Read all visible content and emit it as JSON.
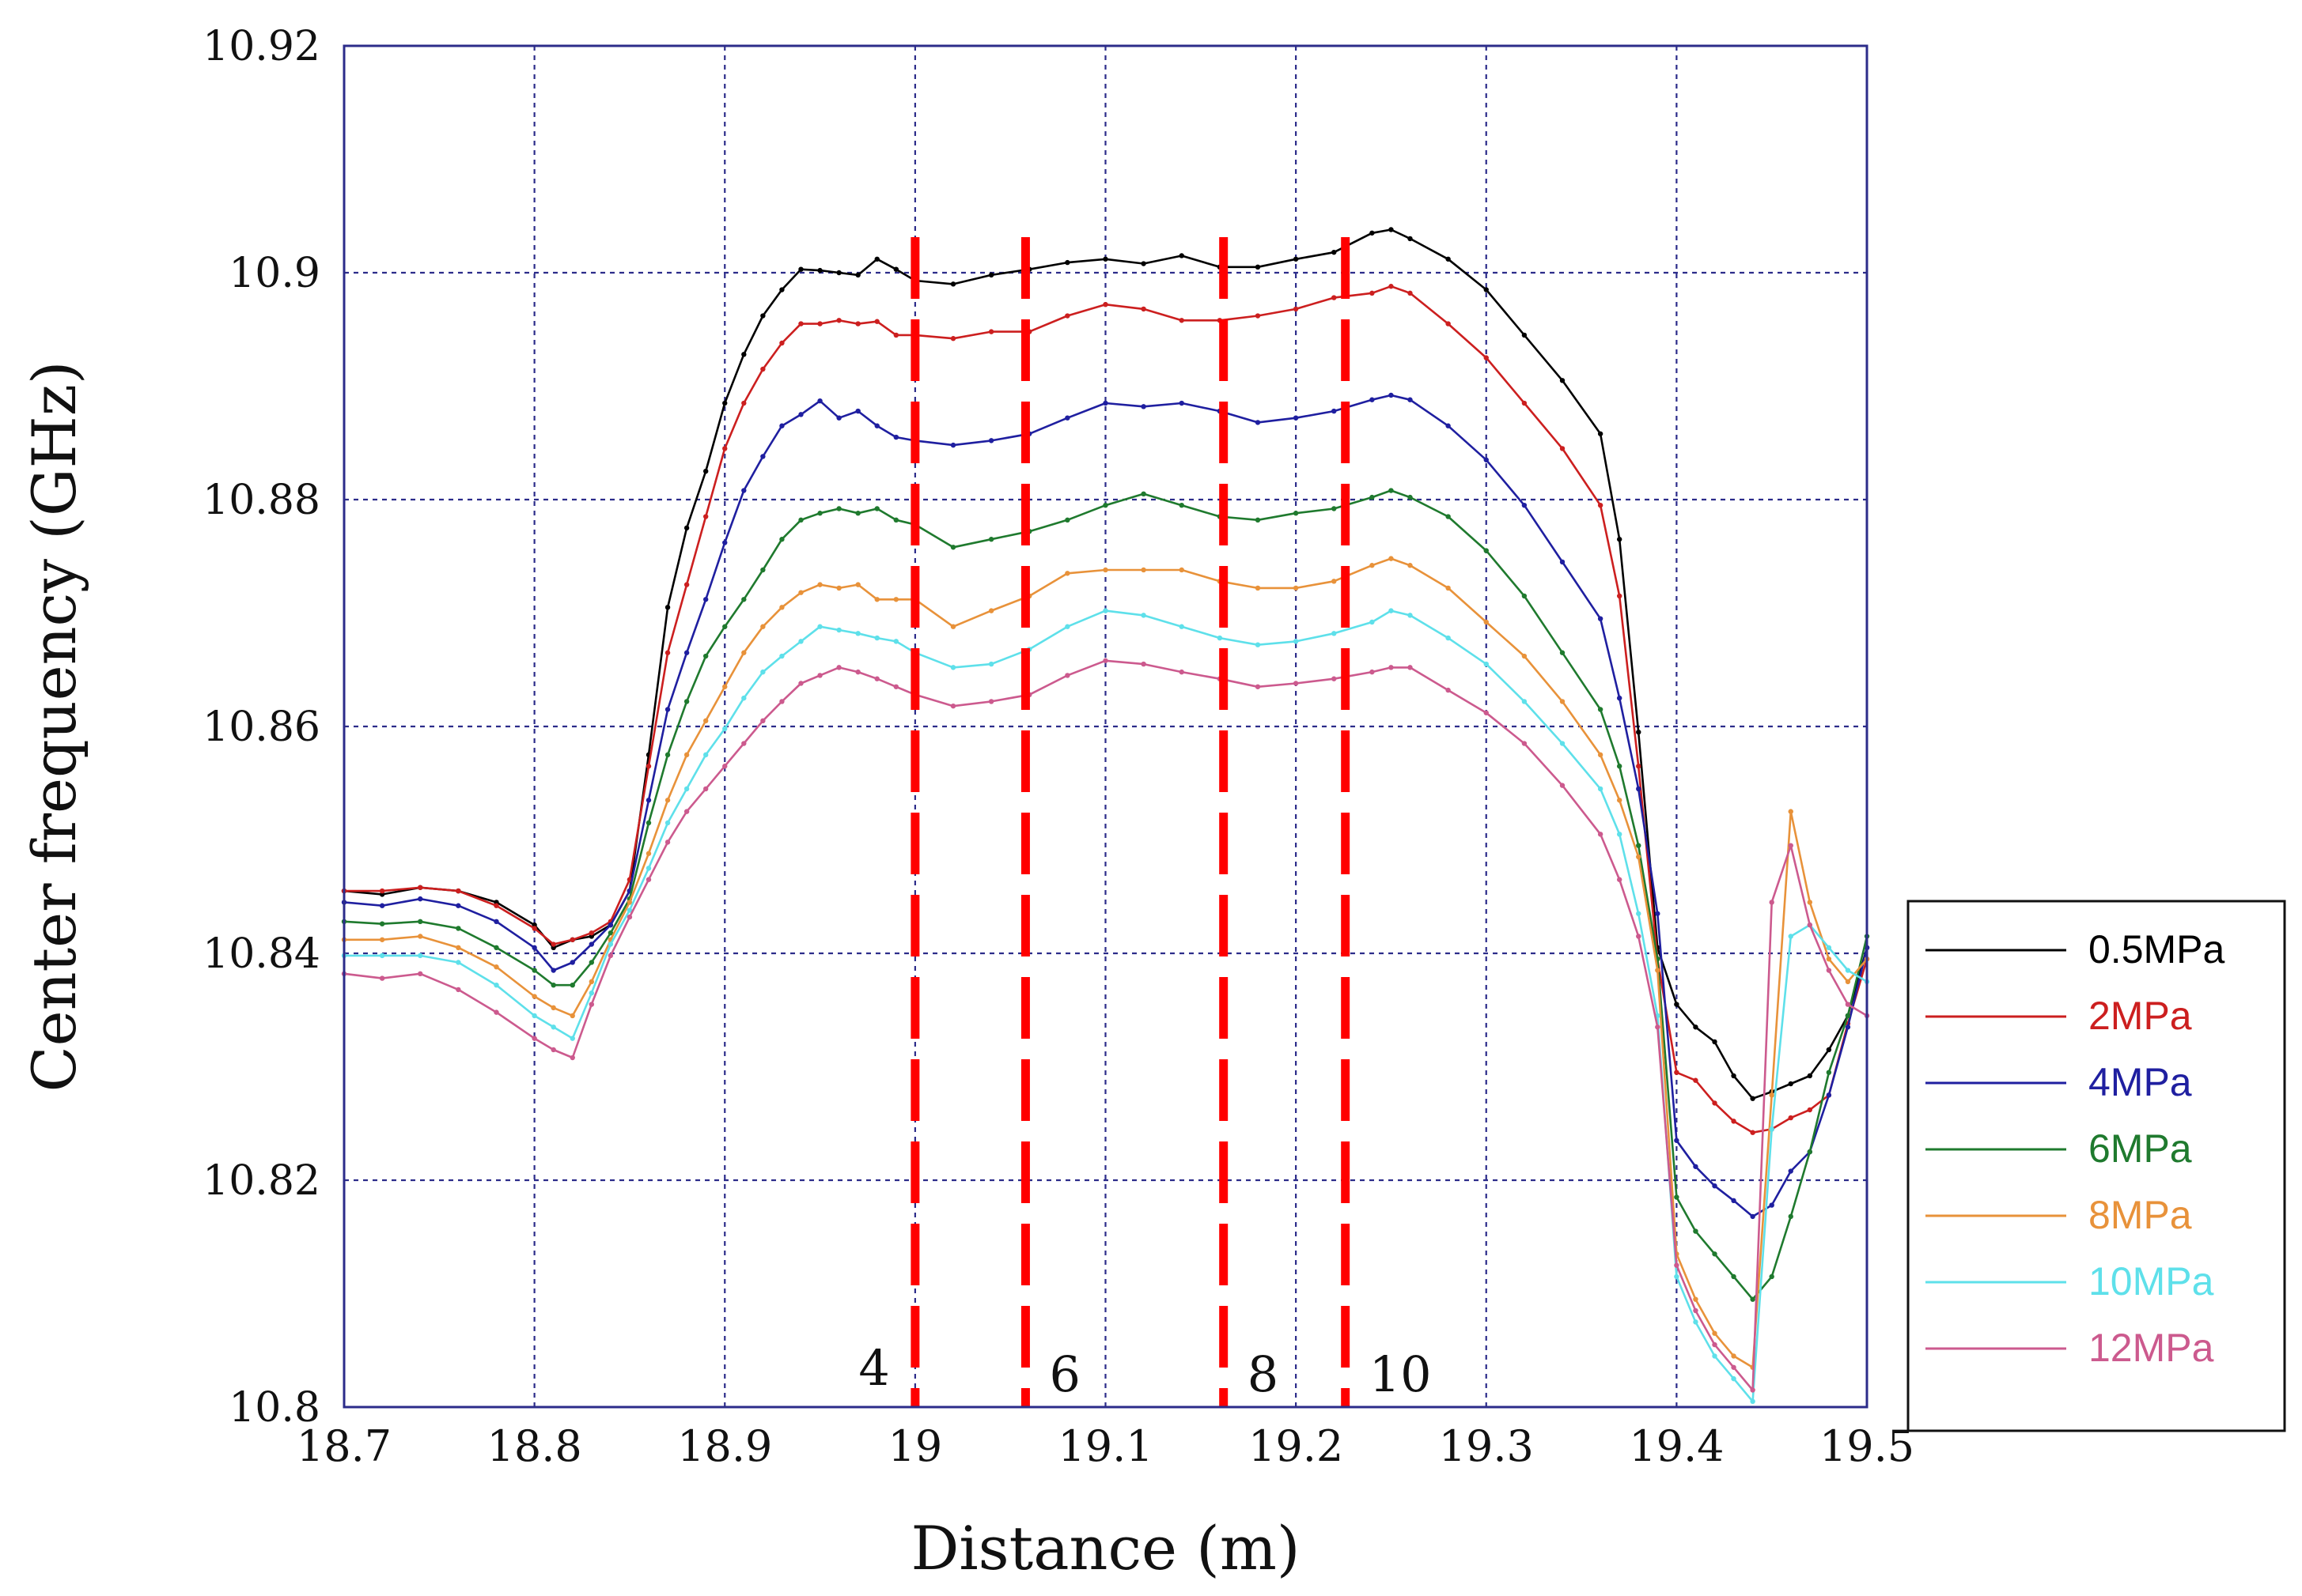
{
  "chart_data": {
    "type": "line",
    "title": "",
    "xlabel": "Distance (m)",
    "ylabel": "Center frequency (GHz)",
    "xlim": [
      18.7,
      19.5
    ],
    "ylim": [
      10.8,
      10.92
    ],
    "grid": true,
    "legend_position": "right",
    "x_ticks": [
      {
        "value": 18.7,
        "label": "18.7"
      },
      {
        "value": 18.8,
        "label": "18.8"
      },
      {
        "value": 18.9,
        "label": "18.9"
      },
      {
        "value": 19.0,
        "label": "19"
      },
      {
        "value": 19.1,
        "label": "19.1"
      },
      {
        "value": 19.2,
        "label": "19.2"
      },
      {
        "value": 19.3,
        "label": "19.3"
      },
      {
        "value": 19.4,
        "label": "19.4"
      },
      {
        "value": 19.5,
        "label": "19.5"
      }
    ],
    "y_ticks": [
      {
        "value": 10.8,
        "label": "10.8"
      },
      {
        "value": 10.82,
        "label": "10.82"
      },
      {
        "value": 10.84,
        "label": "10.84"
      },
      {
        "value": 10.86,
        "label": "10.86"
      },
      {
        "value": 10.88,
        "label": "10.88"
      },
      {
        "value": 10.9,
        "label": "10.9"
      },
      {
        "value": 10.92,
        "label": "10.92"
      }
    ],
    "series": [
      {
        "name": "0.5MPa",
        "color": "#000000",
        "x": [
          18.7,
          18.72,
          18.74,
          18.76,
          18.78,
          18.8,
          18.81,
          18.82,
          18.83,
          18.84,
          18.85,
          18.86,
          18.87,
          18.88,
          18.89,
          18.9,
          18.91,
          18.92,
          18.93,
          18.94,
          18.95,
          18.96,
          18.97,
          18.98,
          18.99,
          19.0,
          19.02,
          19.04,
          19.06,
          19.08,
          19.1,
          19.12,
          19.14,
          19.16,
          19.18,
          19.2,
          19.22,
          19.24,
          19.25,
          19.26,
          19.28,
          19.3,
          19.32,
          19.34,
          19.36,
          19.37,
          19.38,
          19.39,
          19.4,
          19.41,
          19.42,
          19.43,
          19.44,
          19.45,
          19.46,
          19.47,
          19.48,
          19.49,
          19.5
        ],
        "values": [
          10.8455,
          10.8452,
          10.8458,
          10.8455,
          10.8445,
          10.8425,
          10.8405,
          10.8412,
          10.8415,
          10.8425,
          10.8455,
          10.8575,
          10.8705,
          10.8775,
          10.8825,
          10.8885,
          10.8928,
          10.8962,
          10.8985,
          10.9003,
          10.9002,
          10.9,
          10.8998,
          10.9012,
          10.9003,
          10.8993,
          10.899,
          10.8998,
          10.9003,
          10.9009,
          10.9012,
          10.9008,
          10.9015,
          10.9005,
          10.9005,
          10.9012,
          10.9018,
          10.9035,
          10.9038,
          10.903,
          10.9012,
          10.8985,
          10.8945,
          10.8905,
          10.8858,
          10.8765,
          10.8595,
          10.8405,
          10.8355,
          10.8335,
          10.8322,
          10.8292,
          10.8272,
          10.8278,
          10.8285,
          10.8292,
          10.8315,
          10.8345,
          10.8405
        ]
      },
      {
        "name": "2MPa",
        "color": "#cc1f1f",
        "x": [
          18.7,
          18.72,
          18.74,
          18.76,
          18.78,
          18.8,
          18.81,
          18.82,
          18.83,
          18.84,
          18.85,
          18.86,
          18.87,
          18.88,
          18.89,
          18.9,
          18.91,
          18.92,
          18.93,
          18.94,
          18.95,
          18.96,
          18.97,
          18.98,
          18.99,
          19.0,
          19.02,
          19.04,
          19.06,
          19.08,
          19.1,
          19.12,
          19.14,
          19.16,
          19.18,
          19.2,
          19.22,
          19.24,
          19.25,
          19.26,
          19.28,
          19.3,
          19.32,
          19.34,
          19.36,
          19.37,
          19.38,
          19.39,
          19.4,
          19.41,
          19.42,
          19.43,
          19.44,
          19.45,
          19.46,
          19.47,
          19.48,
          19.49,
          19.5
        ],
        "values": [
          10.8455,
          10.8455,
          10.8458,
          10.8455,
          10.8442,
          10.8422,
          10.8408,
          10.8412,
          10.8418,
          10.8428,
          10.8465,
          10.8565,
          10.8665,
          10.8725,
          10.8785,
          10.8845,
          10.8885,
          10.8915,
          10.8938,
          10.8955,
          10.8955,
          10.8958,
          10.8955,
          10.8957,
          10.8945,
          10.8945,
          10.8942,
          10.8948,
          10.8948,
          10.8962,
          10.8972,
          10.8968,
          10.8958,
          10.8958,
          10.8962,
          10.8968,
          10.8978,
          10.8982,
          10.8988,
          10.8982,
          10.8955,
          10.8925,
          10.8885,
          10.8845,
          10.8795,
          10.8715,
          10.8565,
          10.8395,
          10.8295,
          10.8288,
          10.8268,
          10.8252,
          10.8242,
          10.8245,
          10.8255,
          10.8262,
          10.8275,
          10.8338,
          10.8395
        ]
      },
      {
        "name": "4MPa",
        "color": "#1f1fa0",
        "x": [
          18.7,
          18.72,
          18.74,
          18.76,
          18.78,
          18.8,
          18.81,
          18.82,
          18.83,
          18.84,
          18.85,
          18.86,
          18.87,
          18.88,
          18.89,
          18.9,
          18.91,
          18.92,
          18.93,
          18.94,
          18.95,
          18.96,
          18.97,
          18.98,
          18.99,
          19.0,
          19.02,
          19.04,
          19.06,
          19.08,
          19.1,
          19.12,
          19.14,
          19.16,
          19.18,
          19.2,
          19.22,
          19.24,
          19.25,
          19.26,
          19.28,
          19.3,
          19.32,
          19.34,
          19.36,
          19.37,
          19.38,
          19.39,
          19.4,
          19.41,
          19.42,
          19.43,
          19.44,
          19.45,
          19.46,
          19.47,
          19.48,
          19.49,
          19.5
        ],
        "values": [
          10.8445,
          10.8442,
          10.8448,
          10.8442,
          10.8428,
          10.8405,
          10.8385,
          10.8392,
          10.8408,
          10.8425,
          10.8455,
          10.8535,
          10.8615,
          10.8665,
          10.8712,
          10.8762,
          10.8808,
          10.8838,
          10.8865,
          10.8875,
          10.8887,
          10.8872,
          10.8878,
          10.8865,
          10.8855,
          10.8852,
          10.8848,
          10.8852,
          10.8858,
          10.8872,
          10.8885,
          10.8882,
          10.8885,
          10.8878,
          10.8868,
          10.8872,
          10.8878,
          10.8888,
          10.8892,
          10.8888,
          10.8865,
          10.8835,
          10.8795,
          10.8745,
          10.8695,
          10.8625,
          10.8545,
          10.8435,
          10.8235,
          10.8212,
          10.8195,
          10.8182,
          10.8168,
          10.8178,
          10.8208,
          10.8225,
          10.8275,
          10.8335,
          10.8405
        ]
      },
      {
        "name": "6MPa",
        "color": "#1f7a2e",
        "x": [
          18.7,
          18.72,
          18.74,
          18.76,
          18.78,
          18.8,
          18.81,
          18.82,
          18.83,
          18.84,
          18.85,
          18.86,
          18.87,
          18.88,
          18.89,
          18.9,
          18.91,
          18.92,
          18.93,
          18.94,
          18.95,
          18.96,
          18.97,
          18.98,
          18.99,
          19.0,
          19.02,
          19.04,
          19.06,
          19.08,
          19.1,
          19.12,
          19.14,
          19.16,
          19.18,
          19.2,
          19.22,
          19.24,
          19.25,
          19.26,
          19.28,
          19.3,
          19.32,
          19.34,
          19.36,
          19.37,
          19.38,
          19.39,
          19.4,
          19.41,
          19.42,
          19.43,
          19.44,
          19.45,
          19.46,
          19.47,
          19.48,
          19.49,
          19.5
        ],
        "values": [
          10.8428,
          10.8426,
          10.8428,
          10.8422,
          10.8405,
          10.8385,
          10.8372,
          10.8372,
          10.8392,
          10.8418,
          10.8448,
          10.8515,
          10.8575,
          10.8622,
          10.8662,
          10.8688,
          10.8712,
          10.8738,
          10.8765,
          10.8782,
          10.8788,
          10.8792,
          10.8788,
          10.8792,
          10.8782,
          10.8778,
          10.8758,
          10.8765,
          10.8772,
          10.8782,
          10.8795,
          10.8805,
          10.8795,
          10.8785,
          10.8782,
          10.8788,
          10.8792,
          10.8802,
          10.8808,
          10.8802,
          10.8785,
          10.8755,
          10.8715,
          10.8665,
          10.8615,
          10.8565,
          10.8495,
          10.8395,
          10.8185,
          10.8155,
          10.8135,
          10.8115,
          10.8095,
          10.8115,
          10.8168,
          10.8225,
          10.8295,
          10.8345,
          10.8415
        ]
      },
      {
        "name": "8MPa",
        "color": "#e8923a",
        "x": [
          18.7,
          18.72,
          18.74,
          18.76,
          18.78,
          18.8,
          18.81,
          18.82,
          18.83,
          18.84,
          18.85,
          18.86,
          18.87,
          18.88,
          18.89,
          18.9,
          18.91,
          18.92,
          18.93,
          18.94,
          18.95,
          18.96,
          18.97,
          18.98,
          18.99,
          19.0,
          19.02,
          19.04,
          19.06,
          19.08,
          19.1,
          19.12,
          19.14,
          19.16,
          19.18,
          19.2,
          19.22,
          19.24,
          19.25,
          19.26,
          19.28,
          19.3,
          19.32,
          19.34,
          19.36,
          19.37,
          19.38,
          19.39,
          19.4,
          19.41,
          19.42,
          19.43,
          19.44,
          19.45,
          19.46,
          19.47,
          19.48,
          19.49,
          19.5
        ],
        "values": [
          10.8412,
          10.8412,
          10.8415,
          10.8405,
          10.8388,
          10.8362,
          10.8352,
          10.8345,
          10.8375,
          10.8412,
          10.8445,
          10.8488,
          10.8535,
          10.8575,
          10.8605,
          10.8635,
          10.8665,
          10.8688,
          10.8705,
          10.8718,
          10.8725,
          10.8722,
          10.8725,
          10.8712,
          10.8712,
          10.8712,
          10.8688,
          10.8702,
          10.8715,
          10.8735,
          10.8738,
          10.8738,
          10.8738,
          10.8728,
          10.8722,
          10.8722,
          10.8728,
          10.8742,
          10.8748,
          10.8742,
          10.8722,
          10.8692,
          10.8662,
          10.8622,
          10.8575,
          10.8535,
          10.8485,
          10.8385,
          10.8135,
          10.8095,
          10.8065,
          10.8045,
          10.8035,
          10.8275,
          10.8525,
          10.8445,
          10.8395,
          10.8375,
          10.8395
        ]
      },
      {
        "name": "10MPa",
        "color": "#5ee0ea",
        "x": [
          18.7,
          18.72,
          18.74,
          18.76,
          18.78,
          18.8,
          18.81,
          18.82,
          18.83,
          18.84,
          18.85,
          18.86,
          18.87,
          18.88,
          18.89,
          18.9,
          18.91,
          18.92,
          18.93,
          18.94,
          18.95,
          18.96,
          18.97,
          18.98,
          18.99,
          19.0,
          19.02,
          19.04,
          19.06,
          19.08,
          19.1,
          19.12,
          19.14,
          19.16,
          19.18,
          19.2,
          19.22,
          19.24,
          19.25,
          19.26,
          19.28,
          19.3,
          19.32,
          19.34,
          19.36,
          19.37,
          19.38,
          19.39,
          19.4,
          19.41,
          19.42,
          19.43,
          19.44,
          19.45,
          19.46,
          19.47,
          19.48,
          19.49,
          19.5
        ],
        "values": [
          10.8398,
          10.8398,
          10.8398,
          10.8392,
          10.8372,
          10.8345,
          10.8335,
          10.8325,
          10.8365,
          10.8408,
          10.8438,
          10.8475,
          10.8515,
          10.8545,
          10.8575,
          10.8598,
          10.8625,
          10.8648,
          10.8662,
          10.8675,
          10.8688,
          10.8685,
          10.8682,
          10.8678,
          10.8675,
          10.8665,
          10.8652,
          10.8655,
          10.8668,
          10.8688,
          10.8702,
          10.8698,
          10.8688,
          10.8678,
          10.8672,
          10.8675,
          10.8682,
          10.8692,
          10.8702,
          10.8698,
          10.8678,
          10.8655,
          10.8622,
          10.8585,
          10.8545,
          10.8505,
          10.8435,
          10.8345,
          10.8115,
          10.8075,
          10.8045,
          10.8025,
          10.8005,
          10.8245,
          10.8415,
          10.8425,
          10.8405,
          10.8385,
          10.8375
        ]
      },
      {
        "name": "12MPa",
        "color": "#cc5a8e",
        "x": [
          18.7,
          18.72,
          18.74,
          18.76,
          18.78,
          18.8,
          18.81,
          18.82,
          18.83,
          18.84,
          18.85,
          18.86,
          18.87,
          18.88,
          18.89,
          18.9,
          18.91,
          18.92,
          18.93,
          18.94,
          18.95,
          18.96,
          18.97,
          18.98,
          18.99,
          19.0,
          19.02,
          19.04,
          19.06,
          19.08,
          19.1,
          19.12,
          19.14,
          19.16,
          19.18,
          19.2,
          19.22,
          19.24,
          19.25,
          19.26,
          19.28,
          19.3,
          19.32,
          19.34,
          19.36,
          19.37,
          19.38,
          19.39,
          19.4,
          19.41,
          19.42,
          19.43,
          19.44,
          19.45,
          19.46,
          19.47,
          19.48,
          19.49,
          19.5
        ],
        "values": [
          10.8382,
          10.8378,
          10.8382,
          10.8368,
          10.8348,
          10.8325,
          10.8315,
          10.8308,
          10.8355,
          10.8398,
          10.8432,
          10.8465,
          10.8498,
          10.8525,
          10.8545,
          10.8565,
          10.8585,
          10.8605,
          10.8622,
          10.8638,
          10.8645,
          10.8652,
          10.8648,
          10.8642,
          10.8635,
          10.8628,
          10.8618,
          10.8622,
          10.8628,
          10.8645,
          10.8658,
          10.8655,
          10.8648,
          10.8642,
          10.8635,
          10.8638,
          10.8642,
          10.8648,
          10.8652,
          10.8652,
          10.8632,
          10.8612,
          10.8585,
          10.8548,
          10.8505,
          10.8465,
          10.8415,
          10.8335,
          10.8125,
          10.8085,
          10.8055,
          10.8035,
          10.8015,
          10.8445,
          10.8495,
          10.8425,
          10.8385,
          10.8355,
          10.8345
        ]
      }
    ],
    "annotations": [
      {
        "x": 19.0,
        "label": "4",
        "color": "#ff0000"
      },
      {
        "x": 19.058,
        "label": "6",
        "color": "#ff0000"
      },
      {
        "x": 19.162,
        "label": "8",
        "color": "#ff0000"
      },
      {
        "x": 19.226,
        "label": "10",
        "color": "#ff0000"
      }
    ]
  },
  "colors": {
    "grid": "#2c2c8a",
    "axis": "#2c2c8a",
    "marker_line": "#ff0000",
    "text": "#111111"
  }
}
